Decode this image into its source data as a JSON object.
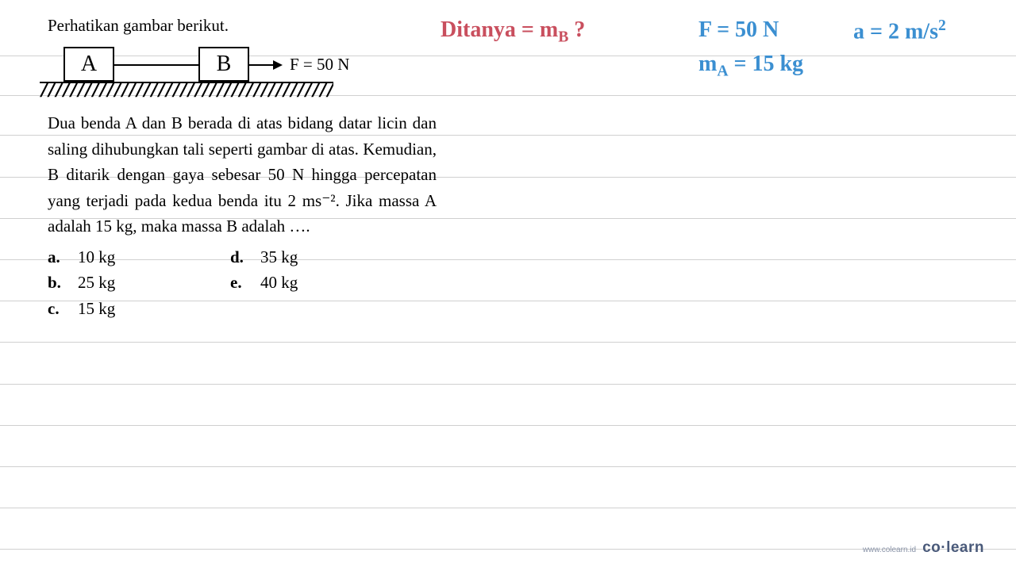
{
  "ruled_line_color": "#d0d0d0",
  "ruled_line_positions": [
    70,
    120,
    170,
    223,
    275,
    327,
    379,
    431,
    484,
    536,
    588,
    640,
    692
  ],
  "question": {
    "intro": "Perhatikan gambar berikut.",
    "diagram": {
      "box_a": "A",
      "box_b": "B",
      "force_label": "F = 50 N",
      "hatches": "////////////////////////////////////////"
    },
    "problem": "Dua benda A dan B berada di atas bidang datar licin dan saling dihubungkan tali seperti gambar di atas. Kemudian, B ditarik dengan gaya sebesar 50 N hingga percepatan yang terjadi pada kedua benda itu 2 ms⁻². Jika massa A adalah 15 kg, maka massa B adalah ….",
    "options": {
      "a": "10 kg",
      "b": "25 kg",
      "c": "15 kg",
      "d": "35 kg",
      "e": "40 kg"
    }
  },
  "handwriting": {
    "ditanya_prefix": "Ditanya = m",
    "ditanya_sub": "B",
    "ditanya_suffix": " ?",
    "f": "F = 50 N",
    "a_prefix": "a = 2 ",
    "a_unit_num": "m",
    "a_unit_den": "/s",
    "a_unit_exp": "2",
    "ma_prefix": "m",
    "ma_sub": "A",
    "ma_suffix": " = 15 kg",
    "color_red": "#c94f5e",
    "color_blue": "#3b8fd1"
  },
  "footer": {
    "url": "www.colearn.id",
    "brand": "co·learn"
  }
}
